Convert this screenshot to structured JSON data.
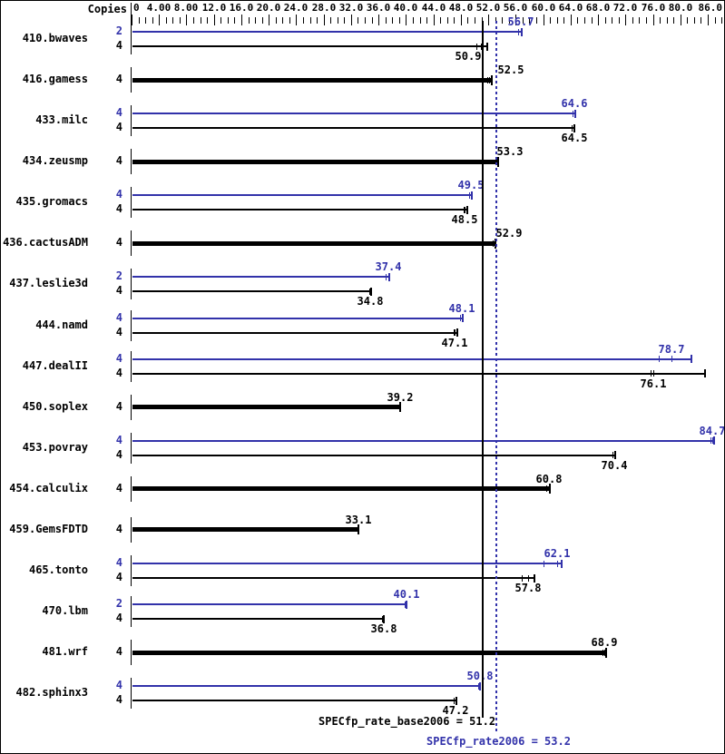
{
  "header": {
    "copies_label": "Copies"
  },
  "colors": {
    "base": "#000000",
    "peak": "#3232aa"
  },
  "footer": {
    "base_label": "SPECfp_rate_base2006 = 51.2",
    "peak_label": "SPECfp_rate2006 = 53.2"
  },
  "chart_data": {
    "type": "bar",
    "orientation": "horizontal",
    "title": "",
    "xlabel": "Copies",
    "xlim": [
      0,
      86
    ],
    "grid": false,
    "axis_tick_labels": [
      {
        "v": 0,
        "t": "0"
      },
      {
        "v": 4,
        "t": "4.00"
      },
      {
        "v": 8,
        "t": "8.00"
      },
      {
        "v": 12,
        "t": "12.0"
      },
      {
        "v": 16,
        "t": "16.0"
      },
      {
        "v": 20,
        "t": "20.0"
      },
      {
        "v": 24,
        "t": "24.0"
      },
      {
        "v": 28,
        "t": "28.0"
      },
      {
        "v": 32,
        "t": "32.0"
      },
      {
        "v": 36,
        "t": "36.0"
      },
      {
        "v": 40,
        "t": "40.0"
      },
      {
        "v": 44,
        "t": "44.0"
      },
      {
        "v": 48,
        "t": "48.0"
      },
      {
        "v": 52,
        "t": "52.0"
      },
      {
        "v": 56,
        "t": "56.0"
      },
      {
        "v": 60,
        "t": "60.0"
      },
      {
        "v": 64,
        "t": "64.0"
      },
      {
        "v": 68,
        "t": "68.0"
      },
      {
        "v": 72,
        "t": "72.0"
      },
      {
        "v": 76,
        "t": "76.0"
      },
      {
        "v": 80,
        "t": "80.0"
      },
      {
        "v": 86,
        "t": "86.0"
      }
    ],
    "minor_tick_step": 1,
    "major_tick_step": 4,
    "reference_lines": [
      {
        "name": "base",
        "value": 51.2,
        "style": "solid"
      },
      {
        "name": "peak",
        "value": 53.2,
        "style": "dotted"
      }
    ],
    "benchmarks": [
      {
        "name": "410.bwaves",
        "bars": [
          {
            "copies": "2",
            "series": "peak",
            "value": 56.7,
            "end": 56.9,
            "runs": [
              56.4,
              56.7
            ]
          },
          {
            "copies": "4",
            "series": "base",
            "value": 50.9,
            "end": 51.9,
            "runs": [
              50.3,
              50.9
            ],
            "label_dx": -14
          }
        ]
      },
      {
        "name": "416.gamess",
        "bars": [
          {
            "copies": "4",
            "series": "base",
            "thick": true,
            "value": 52.5,
            "end": 52.5,
            "runs": [
              51.8,
              52.1
            ],
            "label_dx": 21
          }
        ]
      },
      {
        "name": "433.milc",
        "bars": [
          {
            "copies": "4",
            "series": "peak",
            "value": 64.6,
            "end": 64.7,
            "runs": [
              64.3,
              64.6
            ]
          },
          {
            "copies": "4",
            "series": "base",
            "value": 64.5,
            "end": 64.6,
            "runs": [
              64.2,
              64.5
            ]
          }
        ]
      },
      {
        "name": "434.zeusmp",
        "bars": [
          {
            "copies": "4",
            "series": "base",
            "thick": true,
            "value": 53.3,
            "end": 53.4,
            "runs": [
              53.0,
              53.3
            ],
            "label_dx": 14
          }
        ]
      },
      {
        "name": "435.gromacs",
        "bars": [
          {
            "copies": "4",
            "series": "peak",
            "value": 49.5,
            "end": 49.6,
            "runs": [
              49.2,
              49.5
            ]
          },
          {
            "copies": "4",
            "series": "base",
            "value": 48.5,
            "end": 49.0,
            "runs": [
              48.4,
              48.5
            ]
          }
        ]
      },
      {
        "name": "436.cactusADM",
        "bars": [
          {
            "copies": "4",
            "series": "base",
            "thick": true,
            "value": 52.9,
            "end": 53.0,
            "runs": [
              52.6,
              52.9
            ],
            "label_dx": 16
          }
        ]
      },
      {
        "name": "437.leslie3d",
        "bars": [
          {
            "copies": "2",
            "series": "peak",
            "value": 37.4,
            "end": 37.6,
            "runs": [
              37.1,
              37.4
            ]
          },
          {
            "copies": "4",
            "series": "base",
            "value": 34.8,
            "end": 34.9,
            "runs": [
              34.6,
              34.8
            ]
          }
        ]
      },
      {
        "name": "444.namd",
        "bars": [
          {
            "copies": "4",
            "series": "peak",
            "value": 48.1,
            "end": 48.3,
            "runs": [
              47.9,
              48.1
            ]
          },
          {
            "copies": "4",
            "series": "base",
            "value": 47.1,
            "end": 47.5,
            "runs": [
              47.0,
              47.1
            ]
          }
        ]
      },
      {
        "name": "447.dealII",
        "bars": [
          {
            "copies": "4",
            "series": "peak",
            "value": 78.7,
            "end": 81.6,
            "runs": [
              76.8,
              78.7
            ]
          },
          {
            "copies": "4",
            "series": "base",
            "value": 76.1,
            "end": 83.6,
            "runs": [
              75.7,
              76.1
            ]
          }
        ]
      },
      {
        "name": "450.soplex",
        "bars": [
          {
            "copies": "4",
            "series": "base",
            "thick": true,
            "value": 39.2,
            "end": 39.2,
            "runs": [
              39.0,
              39.1
            ]
          }
        ]
      },
      {
        "name": "453.povray",
        "bars": [
          {
            "copies": "4",
            "series": "peak",
            "value": 84.7,
            "end": 84.9,
            "runs": [
              84.4,
              84.7
            ]
          },
          {
            "copies": "4",
            "series": "base",
            "value": 70.4,
            "end": 70.5,
            "runs": [
              70.1,
              70.4
            ]
          }
        ]
      },
      {
        "name": "454.calculix",
        "bars": [
          {
            "copies": "4",
            "series": "base",
            "thick": true,
            "value": 60.8,
            "end": 61.0,
            "runs": [
              60.5,
              60.8
            ]
          }
        ]
      },
      {
        "name": "459.GemsFDTD",
        "bars": [
          {
            "copies": "4",
            "series": "base",
            "thick": true,
            "value": 33.1,
            "end": 33.1,
            "runs": [
              32.9,
              33.0
            ]
          }
        ]
      },
      {
        "name": "465.tonto",
        "bars": [
          {
            "copies": "4",
            "series": "peak",
            "value": 62.1,
            "end": 62.7,
            "runs": [
              60.0,
              62.1
            ]
          },
          {
            "copies": "4",
            "series": "base",
            "value": 57.8,
            "end": 58.7,
            "runs": [
              56.9,
              57.8
            ]
          }
        ]
      },
      {
        "name": "470.lbm",
        "bars": [
          {
            "copies": "2",
            "series": "peak",
            "value": 40.1,
            "end": 40.1,
            "runs": [
              39.8,
              40.0
            ]
          },
          {
            "copies": "4",
            "series": "base",
            "value": 36.8,
            "end": 36.8,
            "runs": [
              36.5,
              36.7
            ]
          }
        ]
      },
      {
        "name": "481.wrf",
        "bars": [
          {
            "copies": "4",
            "series": "base",
            "thick": true,
            "value": 68.9,
            "end": 69.2,
            "runs": [
              68.6,
              68.9
            ]
          }
        ]
      },
      {
        "name": "482.sphinx3",
        "bars": [
          {
            "copies": "4",
            "series": "peak",
            "value": 50.8,
            "end": 50.8,
            "runs": [
              50.5,
              50.7
            ]
          },
          {
            "copies": "4",
            "series": "base",
            "value": 47.2,
            "end": 47.3,
            "runs": [
              47.0,
              47.2
            ]
          }
        ]
      }
    ]
  }
}
